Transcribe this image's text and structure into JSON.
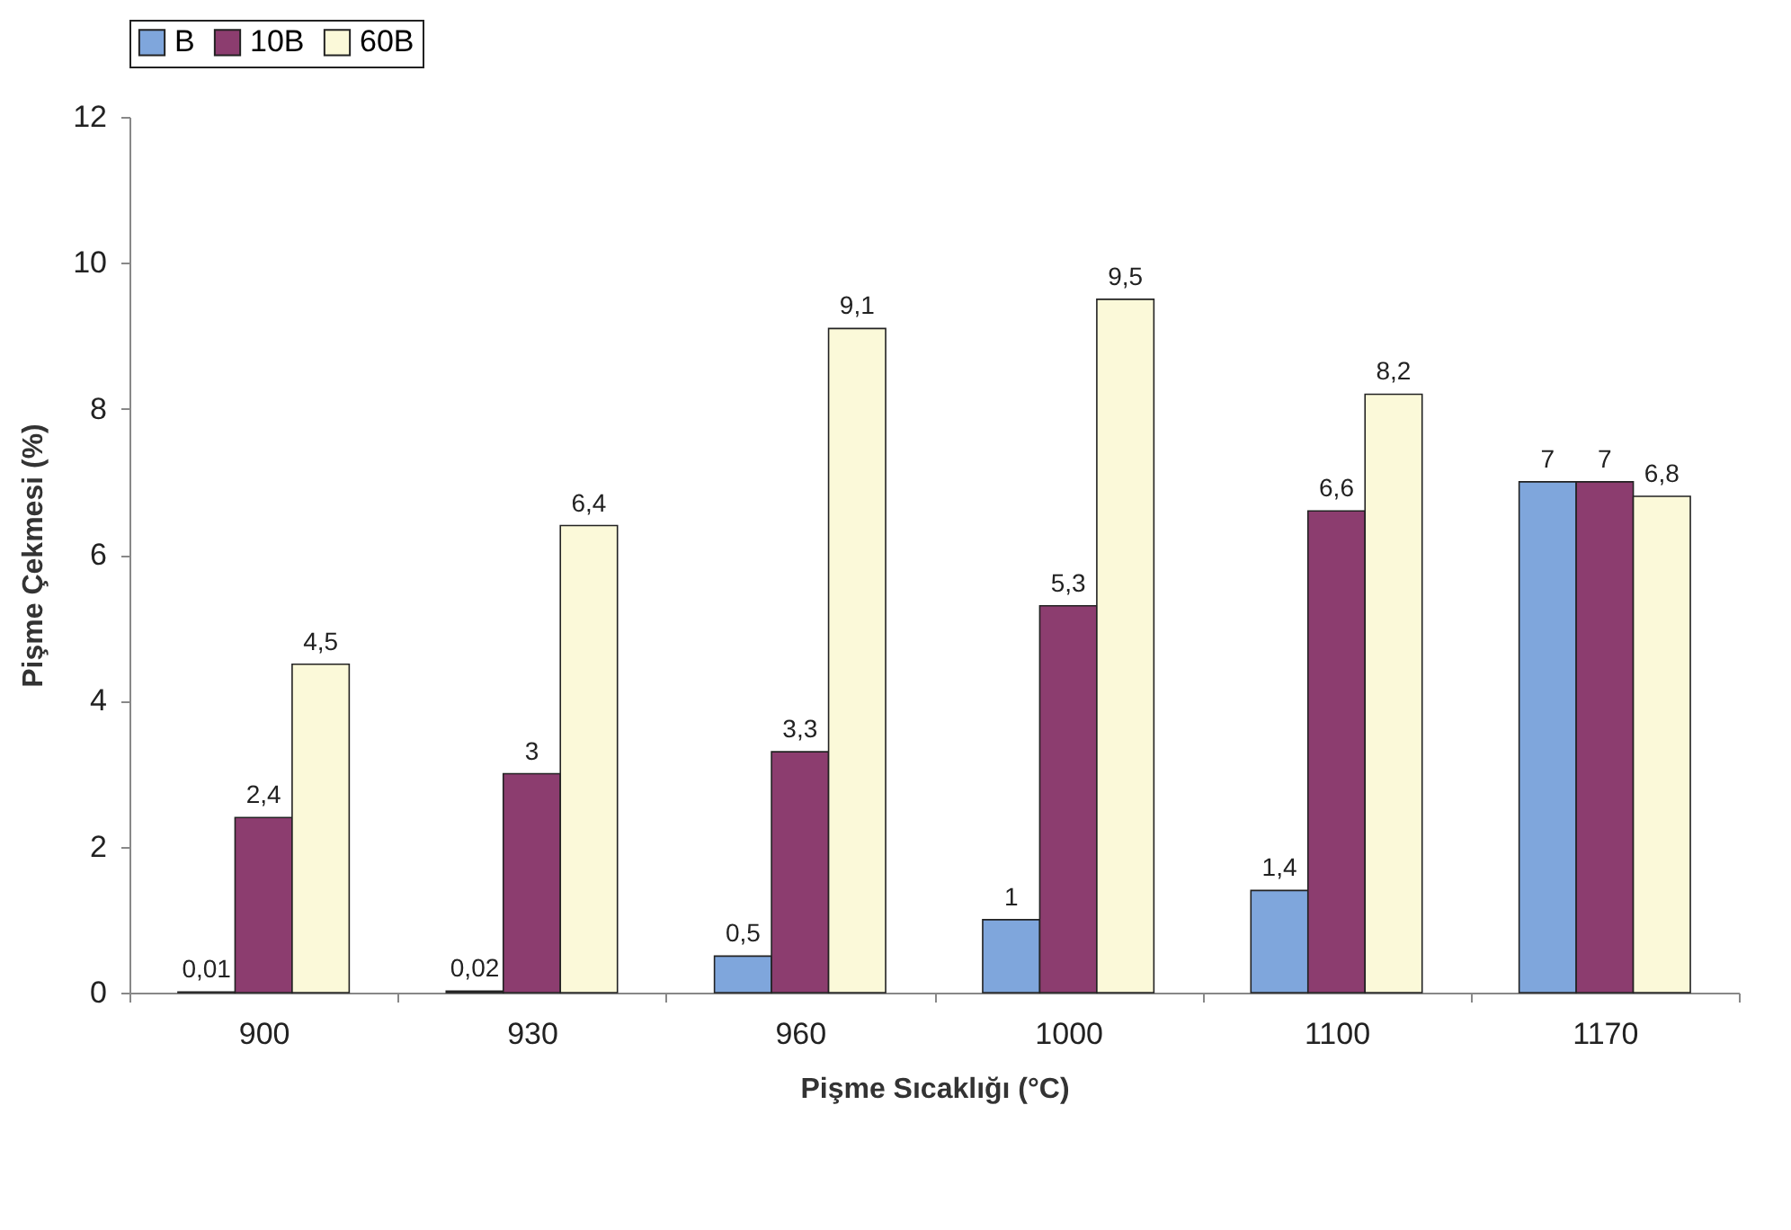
{
  "chart_data": {
    "type": "bar",
    "xlabel": "Pişme Sıcaklığı (°C)",
    "ylabel": "Pişme Çekmesi (%)",
    "categories": [
      "900",
      "930",
      "960",
      "1000",
      "1100",
      "1170"
    ],
    "series": [
      {
        "name": "B",
        "color": "#7fa6dc",
        "values": [
          0.01,
          0.02,
          0.5,
          1,
          1.4,
          7
        ],
        "value_labels": [
          "0,01",
          "0,02",
          "0,5",
          "1",
          "1,4",
          "7"
        ]
      },
      {
        "name": "10B",
        "color": "#8c3d6f",
        "values": [
          2.4,
          3,
          3.3,
          5.3,
          6.6,
          7
        ],
        "value_labels": [
          "2,4",
          "3",
          "3,3",
          "5,3",
          "6,6",
          "7"
        ]
      },
      {
        "name": "60B",
        "color": "#fbf9d9",
        "values": [
          4.5,
          6.4,
          9.1,
          9.5,
          8.2,
          6.8
        ],
        "value_labels": [
          "4,5",
          "6,4",
          "9,1",
          "9,5",
          "8,2",
          "6,8"
        ]
      }
    ],
    "ylim": [
      0,
      12
    ],
    "yticks": [
      0,
      2,
      4,
      6,
      8,
      10,
      12
    ],
    "legend": "top"
  }
}
